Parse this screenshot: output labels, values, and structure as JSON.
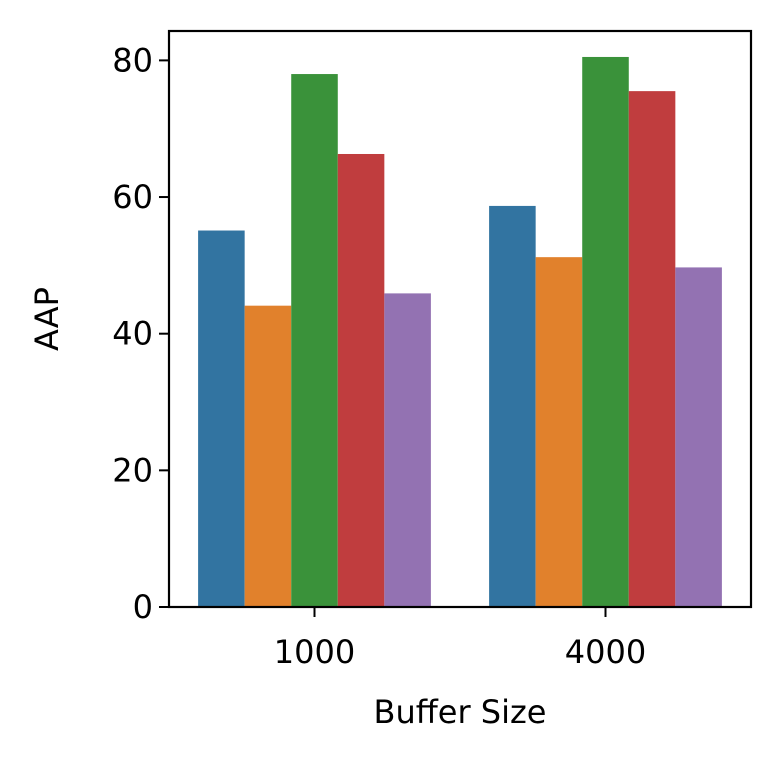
{
  "chart_data": {
    "type": "bar",
    "title": "",
    "xlabel": "Buffer Size",
    "ylabel": "AAP",
    "categories": [
      "1000",
      "4000"
    ],
    "ylim": [
      0,
      84.3
    ],
    "yticks": [
      0,
      20,
      40,
      60,
      80
    ],
    "grid": false,
    "legend": "none",
    "series": [
      {
        "color": "#3274a1",
        "values": [
          55.1,
          58.7
        ]
      },
      {
        "color": "#e1812c",
        "values": [
          44.1,
          51.2
        ]
      },
      {
        "color": "#3a923a",
        "values": [
          78.0,
          80.5
        ]
      },
      {
        "color": "#c03d3e",
        "values": [
          66.3,
          75.5
        ]
      },
      {
        "color": "#9372b2",
        "values": [
          45.9,
          49.7
        ]
      }
    ]
  }
}
